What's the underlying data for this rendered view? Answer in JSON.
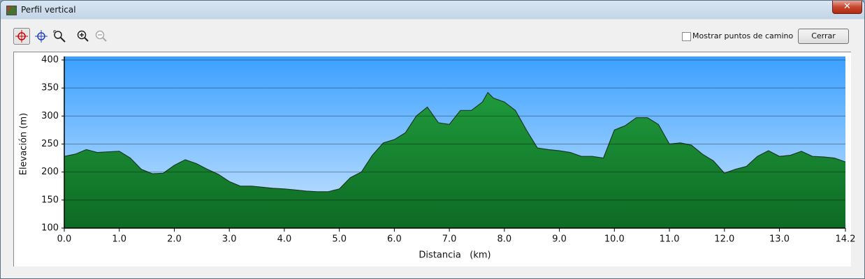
{
  "window": {
    "title": "Perfil vertical",
    "checkbox_label": "Mostrar puntos de camino",
    "button_label": "Cerrar"
  },
  "chart_data": {
    "type": "area",
    "x_label": "Distancia   (km)",
    "y_label": "Elevación (m)",
    "x": [
      0,
      0.2,
      0.4,
      0.6,
      0.8,
      1.0,
      1.2,
      1.4,
      1.6,
      1.8,
      2.0,
      2.2,
      2.4,
      2.6,
      2.8,
      3.0,
      3.2,
      3.4,
      3.6,
      3.8,
      4.0,
      4.2,
      4.4,
      4.6,
      4.8,
      5.0,
      5.2,
      5.4,
      5.6,
      5.8,
      6.0,
      6.2,
      6.4,
      6.6,
      6.8,
      7.0,
      7.2,
      7.4,
      7.6,
      7.7,
      7.8,
      8.0,
      8.2,
      8.4,
      8.6,
      8.8,
      9.0,
      9.2,
      9.4,
      9.6,
      9.8,
      10.0,
      10.2,
      10.4,
      10.6,
      10.8,
      11.0,
      11.2,
      11.4,
      11.6,
      11.8,
      12.0,
      12.2,
      12.4,
      12.6,
      12.8,
      13.0,
      13.2,
      13.4,
      13.6,
      13.8,
      14.0,
      14.2
    ],
    "values": [
      228,
      232,
      240,
      235,
      236,
      237,
      225,
      205,
      197,
      198,
      212,
      222,
      215,
      205,
      196,
      183,
      175,
      175,
      173,
      171,
      170,
      168,
      166,
      165,
      165,
      170,
      190,
      200,
      230,
      252,
      258,
      270,
      300,
      316,
      288,
      285,
      310,
      310,
      325,
      342,
      332,
      325,
      310,
      275,
      243,
      240,
      238,
      235,
      228,
      228,
      225,
      275,
      283,
      297,
      297,
      285,
      250,
      252,
      248,
      232,
      220,
      198,
      205,
      210,
      228,
      238,
      228,
      230,
      237,
      228,
      227,
      225,
      218
    ],
    "color": "#1f9a3c",
    "background_color": "#3aa0ff",
    "xlim": [
      0,
      14.2
    ],
    "xticks": [
      {
        "value": 0,
        "label": "0.0"
      },
      {
        "value": 1,
        "label": "1.0"
      },
      {
        "value": 2,
        "label": "2.0"
      },
      {
        "value": 3,
        "label": "3.0"
      },
      {
        "value": 4,
        "label": "4.0"
      },
      {
        "value": 5,
        "label": "5.0"
      },
      {
        "value": 6,
        "label": "6.0"
      },
      {
        "value": 7,
        "label": "7.0"
      },
      {
        "value": 8,
        "label": "8.0"
      },
      {
        "value": 9,
        "label": "9.0"
      },
      {
        "value": 10,
        "label": "10.0"
      },
      {
        "value": 11,
        "label": "11.0"
      },
      {
        "value": 12,
        "label": "12.0"
      },
      {
        "value": 13,
        "label": "13.0"
      },
      14.2
    ],
    "ylim": [
      100,
      400
    ],
    "yticks": [
      100,
      150,
      200,
      250,
      300,
      350,
      400
    ],
    "grid": true
  }
}
